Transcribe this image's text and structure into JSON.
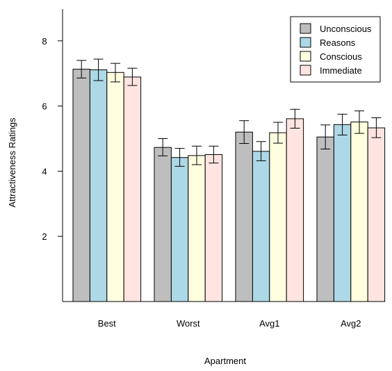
{
  "chart_data": {
    "type": "bar",
    "title": "",
    "xlabel": "Apartment",
    "ylabel": "Attractiveness Ratings",
    "categories": [
      "Best",
      "Worst",
      "Avg1",
      "Avg2"
    ],
    "ylim": [
      0,
      9
    ],
    "yticks": [
      2,
      4,
      6,
      8
    ],
    "grid": false,
    "legend_position": "top-right",
    "error_bars": true,
    "series": [
      {
        "name": "Unconscious",
        "color": "#bebebe",
        "values": [
          7.13,
          4.73,
          5.2,
          5.05
        ],
        "error_low": [
          6.86,
          4.47,
          4.85,
          4.68
        ],
        "error_high": [
          7.4,
          5.0,
          5.55,
          5.42
        ]
      },
      {
        "name": "Reasons",
        "color": "#add8e6",
        "values": [
          7.11,
          4.42,
          4.61,
          5.43
        ],
        "error_low": [
          6.78,
          4.15,
          4.32,
          5.11
        ],
        "error_high": [
          7.44,
          4.7,
          4.91,
          5.75
        ]
      },
      {
        "name": "Conscious",
        "color": "#ffffe0",
        "values": [
          7.03,
          4.48,
          5.18,
          5.51
        ],
        "error_low": [
          6.74,
          4.2,
          4.86,
          5.16
        ],
        "error_high": [
          7.31,
          4.77,
          5.5,
          5.85
        ]
      },
      {
        "name": "Immediate",
        "color": "#ffe4e1",
        "values": [
          6.89,
          4.51,
          5.61,
          5.33
        ],
        "error_low": [
          6.63,
          4.25,
          5.32,
          5.03
        ],
        "error_high": [
          7.16,
          4.77,
          5.9,
          5.64
        ]
      }
    ]
  }
}
